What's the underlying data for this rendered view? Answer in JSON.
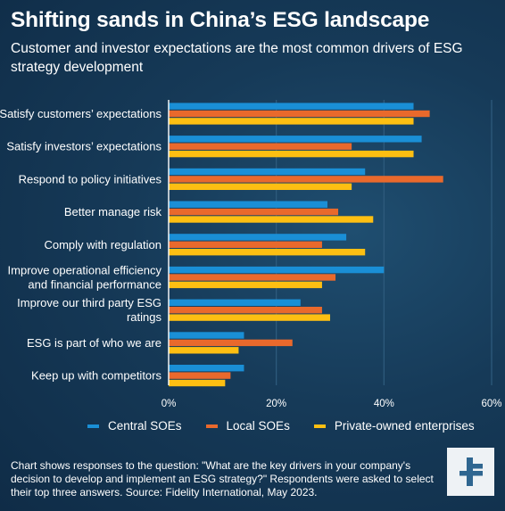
{
  "header": {
    "title": "Shifting sands in China’s ESG landscape",
    "subtitle": "Customer and investor expectations are the most common drivers of ESG strategy development"
  },
  "footnote": "Chart shows responses to the question: \"What are the key drivers in your company's decision to develop and implement an ESG strategy?\" Respondents were asked to select their top three answers. Source: Fidelity International, May 2023.",
  "logo": {
    "icon": "fidelity-logo-icon",
    "background": "#eef2f5",
    "color": "#2f6690"
  },
  "colors": {
    "Central SOEs": "#1a8fd6",
    "Local SOEs": "#e9692c",
    "Private-owned enterprises": "#fdbf12",
    "grid": "#2f5c7e",
    "axis": "#ffffff"
  },
  "chart_data": {
    "type": "bar",
    "orientation": "horizontal",
    "categories": [
      [
        "Satisfy customers’ expectations"
      ],
      [
        "Satisfy investors’ expectations"
      ],
      [
        "Respond to policy initiatives"
      ],
      [
        "Better manage risk"
      ],
      [
        "Comply with regulation"
      ],
      [
        "Improve operational efficiency",
        "and financial performance"
      ],
      [
        "Improve our third party ESG",
        "ratings"
      ],
      [
        "ESG is part of who we are"
      ],
      [
        "Keep up with competitors"
      ]
    ],
    "series": [
      {
        "name": "Central SOEs",
        "values": [
          45.5,
          47,
          36.5,
          29.5,
          33,
          40,
          24.5,
          14,
          14
        ]
      },
      {
        "name": "Local SOEs",
        "values": [
          48.5,
          34,
          51,
          31.5,
          28.5,
          31,
          28.5,
          23,
          11.5
        ]
      },
      {
        "name": "Private-owned enterprises",
        "values": [
          45.5,
          45.5,
          34,
          38,
          36.5,
          28.5,
          30,
          13,
          10.5
        ]
      }
    ],
    "xlim": [
      0,
      60
    ],
    "xticks": [
      "0%",
      "20%",
      "40%",
      "60%"
    ],
    "grid": true,
    "legend": "bottom"
  }
}
